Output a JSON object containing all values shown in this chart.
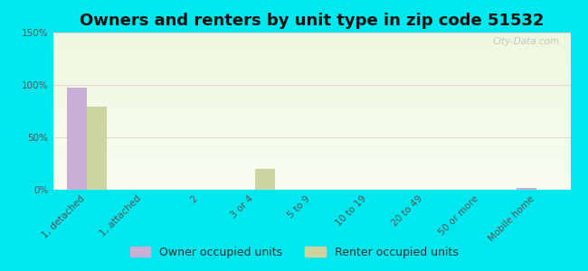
{
  "title": "Owners and renters by unit type in zip code 51532",
  "categories": [
    "1, detached",
    "1, attached",
    "2",
    "3 or 4",
    "5 to 9",
    "10 to 19",
    "20 to 49",
    "50 or more",
    "Mobile home"
  ],
  "owner_values": [
    97,
    0,
    0,
    0,
    0,
    0,
    0,
    0,
    2
  ],
  "renter_values": [
    79,
    0,
    0,
    20,
    0,
    0,
    0,
    0,
    0
  ],
  "owner_color": "#c9aed6",
  "renter_color": "#cdd4a0",
  "ylim": [
    0,
    150
  ],
  "yticks": [
    0,
    50,
    100,
    150
  ],
  "ytick_labels": [
    "0%",
    "50%",
    "100%",
    "150%"
  ],
  "plot_bg_top": "#f8fdf0",
  "plot_bg_bottom": "#eef8e0",
  "outer_bg": "#00e8ef",
  "bar_width": 0.35,
  "title_fontsize": 13,
  "tick_fontsize": 7.5,
  "legend_fontsize": 9,
  "grid_color": "#f2d0d8",
  "watermark": "City-Data.com"
}
